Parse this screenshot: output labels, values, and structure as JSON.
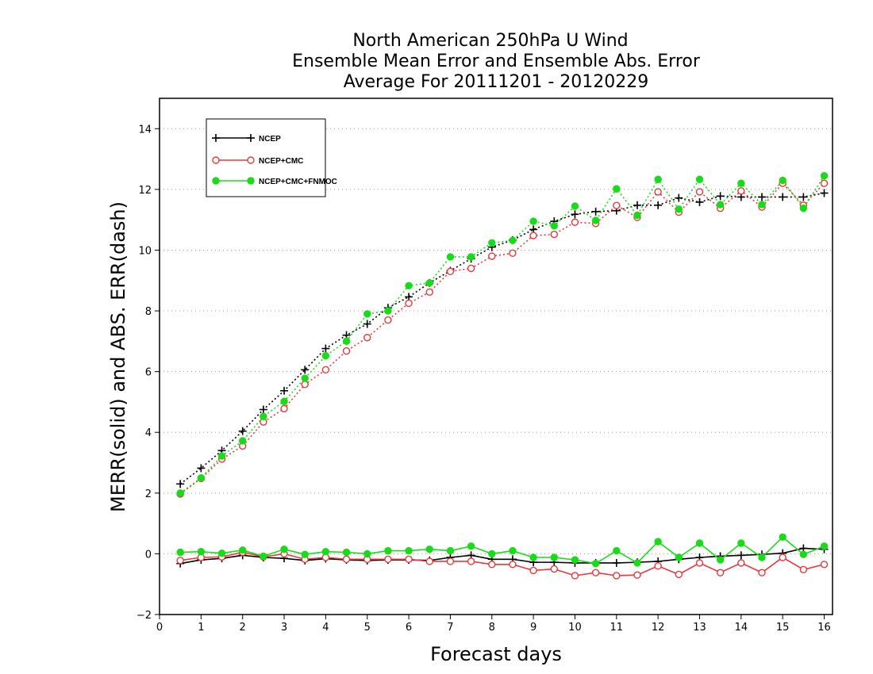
{
  "chart_data": {
    "type": "line",
    "title": [
      "North American 250hPa U Wind",
      "Ensemble Mean Error and Ensemble Abs. Error",
      "Average For 20111201 - 20120229"
    ],
    "xlabel": "Forecast days",
    "ylabel": "MERR(solid) and ABS. ERR(dash)",
    "xlim": [
      0,
      16.2
    ],
    "ylim": [
      -2,
      15
    ],
    "xticks": [
      0,
      1,
      2,
      3,
      4,
      5,
      6,
      7,
      8,
      9,
      10,
      11,
      12,
      13,
      14,
      15,
      16
    ],
    "yticks": [
      -2,
      0,
      2,
      4,
      6,
      8,
      10,
      12,
      14
    ],
    "xtick_labels": [
      "0",
      "1",
      "2",
      "3",
      "4",
      "5",
      "6",
      "7",
      "8",
      "9",
      "10",
      "11",
      "12",
      "13",
      "14",
      "15",
      "16"
    ],
    "ytick_labels": [
      "−2",
      "0",
      "2",
      "4",
      "6",
      "8",
      "10",
      "12",
      "14"
    ],
    "grid": "horizontal dotted",
    "legend_position": "top-left",
    "x": [
      0.5,
      1.0,
      1.5,
      2.0,
      2.5,
      3.0,
      3.5,
      4.0,
      4.5,
      5.0,
      5.5,
      6.0,
      6.5,
      7.0,
      7.5,
      8.0,
      8.5,
      9.0,
      9.5,
      10.0,
      10.5,
      11.0,
      11.5,
      12.0,
      12.5,
      13.0,
      13.5,
      14.0,
      14.5,
      15.0,
      15.5,
      16.0
    ],
    "series": [
      {
        "name": "NCEP",
        "color": "#000000",
        "marker": "plus",
        "mean_error": [
          -0.32,
          -0.2,
          -0.15,
          -0.05,
          -0.12,
          -0.15,
          -0.22,
          -0.16,
          -0.2,
          -0.22,
          -0.2,
          -0.2,
          -0.22,
          -0.12,
          -0.05,
          -0.18,
          -0.18,
          -0.28,
          -0.28,
          -0.3,
          -0.3,
          -0.3,
          -0.28,
          -0.25,
          -0.18,
          -0.12,
          -0.08,
          -0.05,
          -0.02,
          0.02,
          0.18,
          0.15
        ],
        "abs_error": [
          2.3,
          2.82,
          3.4,
          4.04,
          4.75,
          5.37,
          6.06,
          6.76,
          7.2,
          7.57,
          8.1,
          8.46,
          8.92,
          9.32,
          9.72,
          10.1,
          10.33,
          10.68,
          10.95,
          11.18,
          11.27,
          11.3,
          11.48,
          11.48,
          11.72,
          11.58,
          11.78,
          11.75,
          11.75,
          11.75,
          11.75,
          11.88
        ]
      },
      {
        "name": "NCEP+CMC",
        "color": "#e8383a",
        "marker": "open-circle",
        "mean_error": [
          -0.22,
          -0.12,
          -0.1,
          0.05,
          -0.1,
          0.0,
          -0.18,
          -0.12,
          -0.18,
          -0.18,
          -0.18,
          -0.18,
          -0.25,
          -0.25,
          -0.25,
          -0.35,
          -0.35,
          -0.55,
          -0.5,
          -0.72,
          -0.62,
          -0.72,
          -0.7,
          -0.4,
          -0.68,
          -0.3,
          -0.62,
          -0.3,
          -0.62,
          -0.12,
          -0.52,
          -0.35
        ],
        "abs_error": [
          1.97,
          2.48,
          3.12,
          3.55,
          4.34,
          4.78,
          5.58,
          6.06,
          6.68,
          7.12,
          7.7,
          8.25,
          8.62,
          9.3,
          9.4,
          9.8,
          9.9,
          10.48,
          10.52,
          10.92,
          10.88,
          11.47,
          11.08,
          11.92,
          11.25,
          11.92,
          11.38,
          11.95,
          11.42,
          12.2,
          11.48,
          12.2
        ]
      },
      {
        "name": "NCEP+CMC+FNMOC",
        "color": "#19dc19",
        "marker": "filled-circle",
        "mean_error": [
          0.05,
          0.07,
          0.02,
          0.12,
          -0.08,
          0.15,
          -0.02,
          0.07,
          0.05,
          0.0,
          0.1,
          0.1,
          0.15,
          0.1,
          0.25,
          0.0,
          0.1,
          -0.12,
          -0.12,
          -0.2,
          -0.32,
          0.1,
          -0.3,
          0.4,
          -0.12,
          0.35,
          -0.2,
          0.35,
          -0.12,
          0.55,
          -0.02,
          0.25
        ],
        "abs_error": [
          2.0,
          2.5,
          3.22,
          3.72,
          4.52,
          5.02,
          5.78,
          6.52,
          7.0,
          7.9,
          8.0,
          8.83,
          8.92,
          9.78,
          9.78,
          10.24,
          10.32,
          10.95,
          10.8,
          11.45,
          10.98,
          12.02,
          11.15,
          12.33,
          11.35,
          12.33,
          11.5,
          12.2,
          11.5,
          12.3,
          11.38,
          12.45
        ]
      }
    ]
  }
}
